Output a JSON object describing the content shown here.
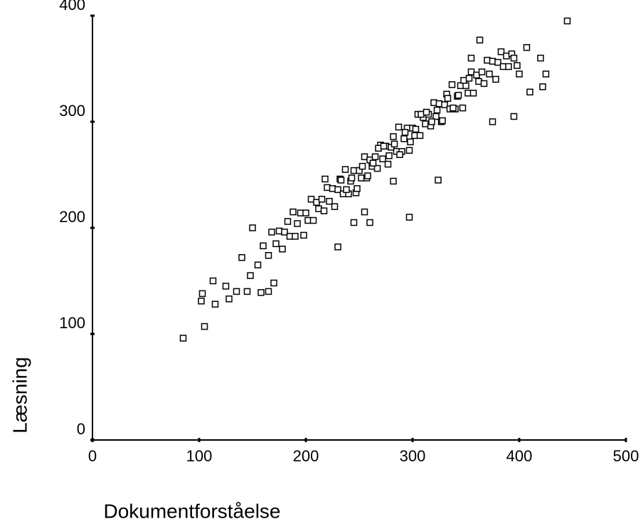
{
  "chart_data": {
    "type": "scatter",
    "x_label": "Dokumentforståelse",
    "y_label": "Læsning",
    "xlim": [
      0,
      500
    ],
    "ylim": [
      0,
      400
    ],
    "xticks": [
      0,
      100,
      200,
      300,
      400,
      500
    ],
    "yticks": [
      0,
      100,
      200,
      300,
      400
    ],
    "color": "#000000",
    "x": [
      160,
      165,
      168,
      172,
      175,
      178,
      180,
      183,
      185,
      188,
      190,
      192,
      195,
      198,
      200,
      202,
      205,
      207,
      210,
      212,
      215,
      217,
      220,
      222,
      225,
      227,
      230,
      232,
      235,
      237,
      240,
      242,
      245,
      247,
      250,
      252,
      255,
      257,
      260,
      262,
      265,
      267,
      270,
      272,
      275,
      277,
      280,
      282,
      285,
      287,
      290,
      292,
      295,
      297,
      300,
      302,
      305,
      307,
      310,
      312,
      315,
      317,
      320,
      322,
      325,
      327,
      330,
      332,
      335,
      337,
      340,
      342,
      345,
      347,
      350,
      352,
      355,
      357,
      360,
      362,
      365,
      367,
      370,
      372,
      375,
      378,
      380,
      383,
      385,
      388,
      390,
      393,
      395,
      398,
      400,
      233,
      238,
      243,
      248,
      253,
      258,
      263,
      268,
      273,
      278,
      283,
      288,
      293,
      298,
      303,
      308,
      313,
      318,
      323,
      328,
      333,
      338,
      343,
      348,
      353,
      85,
      105,
      102,
      103,
      113,
      115,
      125,
      128,
      135,
      140,
      145,
      150,
      158,
      165,
      148,
      170,
      155,
      297,
      324,
      245,
      255,
      230,
      363,
      407,
      420,
      425,
      422,
      410,
      395,
      445,
      355,
      375,
      282,
      218,
      260
    ],
    "y": [
      183,
      174,
      196,
      185,
      197,
      180,
      196,
      206,
      192,
      215,
      192,
      204,
      214,
      193,
      214,
      207,
      227,
      207,
      224,
      218,
      227,
      216,
      238,
      225,
      237,
      220,
      236,
      246,
      232,
      255,
      232,
      244,
      254,
      233,
      254,
      247,
      267,
      247,
      264,
      258,
      267,
      256,
      278,
      265,
      277,
      260,
      276,
      286,
      272,
      295,
      272,
      284,
      294,
      273,
      294,
      287,
      307,
      287,
      304,
      298,
      307,
      296,
      318,
      305,
      317,
      300,
      316,
      326,
      312,
      335,
      312,
      324,
      334,
      313,
      334,
      327,
      347,
      327,
      344,
      338,
      347,
      336,
      358,
      345,
      357,
      340,
      356,
      366,
      352,
      362,
      352,
      364,
      360,
      353,
      345,
      245,
      236,
      247,
      237,
      258,
      249,
      261,
      275,
      277,
      268,
      279,
      269,
      290,
      281,
      293,
      307,
      309,
      300,
      311,
      301,
      322,
      313,
      325,
      339,
      341,
      96,
      107,
      131,
      138,
      150,
      128,
      145,
      133,
      140,
      172,
      140,
      200,
      139,
      140,
      155,
      148,
      165,
      210,
      245,
      205,
      215,
      182,
      377,
      370,
      360,
      345,
      333,
      328,
      305,
      395,
      360,
      300,
      244,
      246,
      205
    ]
  }
}
